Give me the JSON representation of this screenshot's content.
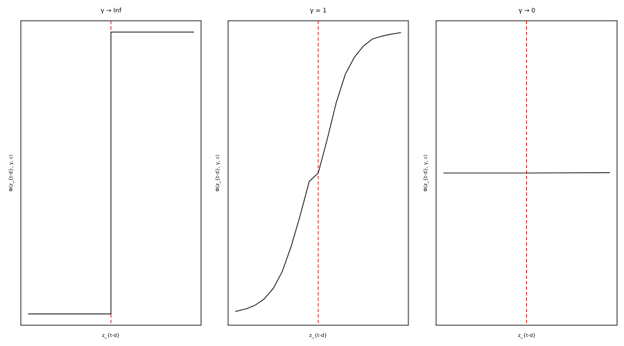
{
  "chart_data": [
    {
      "type": "line",
      "title": "γ → Inf",
      "xlabel": "z_{t-d}",
      "ylabel": "Φ(z_{t-d}, γ, c)",
      "xlim": [
        -1,
        1
      ],
      "ylim": [
        -0.04,
        1.04
      ],
      "grid": false,
      "threshold_x": 0,
      "threshold_style": "red dashed",
      "series": [
        {
          "x": [
            -0.92,
            0,
            0,
            0.92
          ],
          "y": [
            0.0,
            0.0,
            1.0,
            1.0
          ]
        }
      ]
    },
    {
      "type": "line",
      "title": "γ = 1",
      "xlabel": "z_{t-d}",
      "ylabel": "Φ(z_{t-d}, γ, c)",
      "xlim": [
        -1,
        1
      ],
      "ylim": [
        -0.04,
        1.04
      ],
      "grid": false,
      "threshold_x": 0,
      "threshold_style": "red dashed",
      "series": [
        {
          "x": [
            -0.92,
            -0.8,
            -0.7,
            -0.6,
            -0.5,
            -0.4,
            -0.3,
            -0.2,
            -0.1,
            0,
            0.1,
            0.2,
            0.3,
            0.4,
            0.5,
            0.6,
            0.7,
            0.8,
            0.92
          ],
          "y": [
            0.009,
            0.018,
            0.031,
            0.053,
            0.09,
            0.15,
            0.24,
            0.35,
            0.47,
            0.5,
            0.62,
            0.75,
            0.85,
            0.91,
            0.95,
            0.975,
            0.985,
            0.992,
            0.998
          ]
        }
      ]
    },
    {
      "type": "line",
      "title": "γ → 0",
      "xlabel": "z_{t-d}",
      "ylabel": "Φ(z_{t-d}, γ, c)",
      "xlim": [
        -1,
        1
      ],
      "ylim": [
        -0.04,
        1.04
      ],
      "grid": false,
      "threshold_x": 0,
      "threshold_style": "red dashed",
      "series": [
        {
          "x": [
            -0.92,
            0,
            0.92
          ],
          "y": [
            0.5,
            0.5,
            0.501
          ]
        }
      ]
    }
  ]
}
